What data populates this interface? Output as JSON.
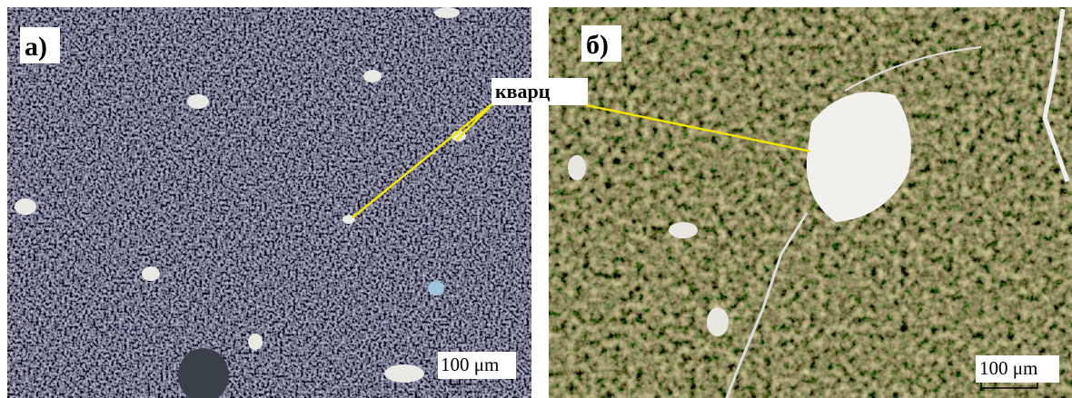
{
  "panels": [
    {
      "label": "а)",
      "scale": "100 μm"
    },
    {
      "label": "б)",
      "scale": "100 μm"
    }
  ],
  "annotation": "кварц"
}
